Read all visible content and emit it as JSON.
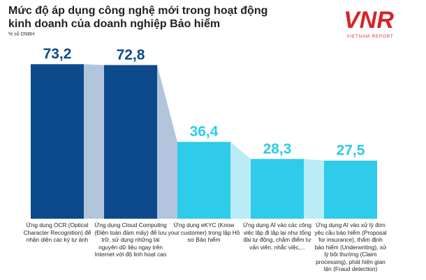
{
  "chart_data": {
    "type": "bar",
    "title": "Mức độ áp dụng công nghệ mới trong hoạt động kinh doanh của doanh nghiệp Bảo hiểm",
    "subtitle": "% số DNBH",
    "logo": "VNR",
    "logo_caption": "VIETNAM REPORT",
    "categories": [
      "Ứng dụng OCR (Optical Character Recognition) để nhận diện các ký tự ảnh",
      "Ứng dụng Cloud Computing (Điện toán đám mây) để lưu trữ, sử dụng những tài nguyên dữ liệu ngay trên Internet với độ linh hoạt cao",
      "Ứng dụng eKYC (Know your customer) trong lập Hồ sơ Bảo hiểm",
      "Ứng dụng AI vào các công việc lặp đi lặp lại như tổng đài tự động, chăm điểm tư vấn viên, nhắc việc,...",
      "Ứng dụng AI vào xử lý đơn yêu cầu bảo hiểm (Proposal for insurance), thẩm định bảo hiểm (Underwriting), xử lý bồi thường (Claim processing), phát hiện gian lận (Fraud detection)"
    ],
    "values": [
      73.2,
      72.8,
      36.4,
      28.3,
      27.5
    ],
    "value_labels": [
      "73,2",
      "72,8",
      "36,4",
      "28,3",
      "27,5"
    ],
    "colors": [
      "#0d4a8c",
      "#0d4a8c",
      "#2ecbea",
      "#2ecbea",
      "#2ecbea"
    ]
  }
}
